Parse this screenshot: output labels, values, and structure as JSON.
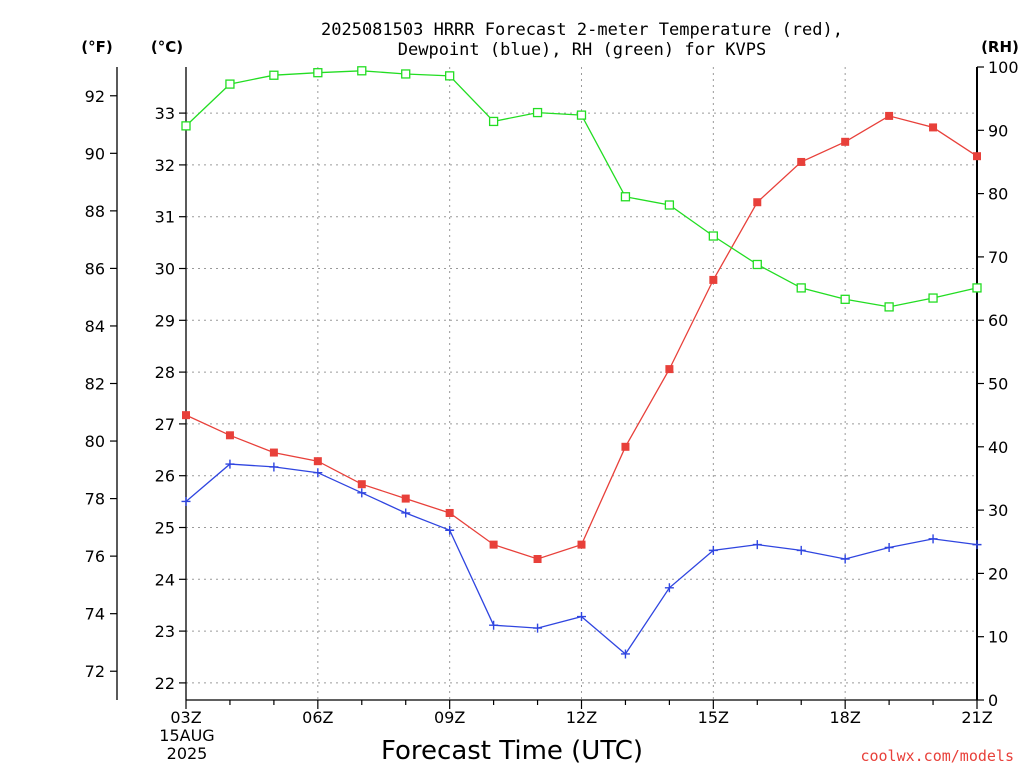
{
  "chart_data": {
    "type": "line",
    "title_line1": "2025081503 HRRR Forecast 2-meter Temperature (red),",
    "title_line2": "Dewpoint (blue), RH (green) for KVPS",
    "units": {
      "fahrenheit": "(°F)",
      "celsius": "(°C)",
      "rh": "(RH)"
    },
    "xlabel": "Forecast Time (UTC)",
    "credit": "coolwx.com/models",
    "x_ticks": [
      "03Z",
      "06Z",
      "09Z",
      "12Z",
      "15Z",
      "18Z",
      "21Z"
    ],
    "x_tick_hours": [
      3,
      6,
      9,
      12,
      15,
      18,
      21
    ],
    "date_label": [
      "15AUG",
      "2025"
    ],
    "x_hours": [
      3,
      4,
      5,
      6,
      7,
      8,
      9,
      10,
      11,
      12,
      13,
      14,
      15,
      16,
      17,
      18,
      19,
      20,
      21
    ],
    "xlim": [
      3,
      21
    ],
    "left_f_axis": {
      "ylim": [
        71,
        93
      ],
      "ticks": [
        72,
        74,
        76,
        78,
        80,
        82,
        84,
        86,
        88,
        90,
        92
      ]
    },
    "left_c_axis": {
      "ylim": [
        21.67,
        33.89
      ],
      "ticks": [
        22,
        23,
        24,
        25,
        26,
        27,
        28,
        29,
        30,
        31,
        32,
        33
      ]
    },
    "right_rh_axis": {
      "ylim": [
        0,
        100
      ],
      "ticks": [
        0,
        10,
        20,
        30,
        40,
        50,
        60,
        70,
        80,
        90,
        100
      ]
    },
    "grid": true,
    "series": [
      {
        "name": "Temperature",
        "color": "#e8403a",
        "marker": "filled-square",
        "axis": "fahrenheit",
        "values": [
          80.9,
          80.2,
          79.6,
          79.3,
          78.5,
          78.0,
          77.5,
          76.4,
          75.9,
          76.4,
          79.8,
          82.5,
          85.6,
          88.3,
          89.7,
          90.4,
          91.3,
          90.9,
          89.9
        ]
      },
      {
        "name": "Dewpoint",
        "color": "#2f45e0",
        "marker": "plus",
        "axis": "fahrenheit",
        "values": [
          77.9,
          79.2,
          79.1,
          78.9,
          78.2,
          77.5,
          76.9,
          73.6,
          73.5,
          73.9,
          72.6,
          74.9,
          76.2,
          76.4,
          76.2,
          75.9,
          76.3,
          76.6,
          76.4
        ]
      },
      {
        "name": "RH",
        "color": "#22dd22",
        "marker": "open-square",
        "axis": "rh",
        "values": [
          90.7,
          97.3,
          98.7,
          99.1,
          99.4,
          98.9,
          98.6,
          91.4,
          92.8,
          92.4,
          79.5,
          78.2,
          73.3,
          68.8,
          65.1,
          63.3,
          62.1,
          63.5,
          65.1
        ]
      }
    ]
  }
}
